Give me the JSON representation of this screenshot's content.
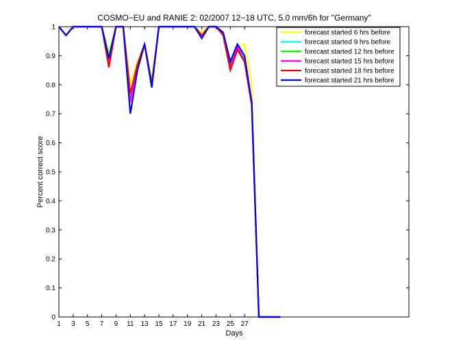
{
  "chart_data": {
    "type": "line",
    "title": "COSMO−EU and RANIE 2: 02/2007 12−18 UTC, 5.0 mm/6h for \"Germany\"",
    "xlabel": "Days",
    "ylabel": "Percent correct score",
    "xlim": [
      1,
      50
    ],
    "ylim": [
      0,
      1
    ],
    "x_ticks": [
      1,
      3,
      5,
      7,
      9,
      11,
      13,
      15,
      17,
      19,
      21,
      23,
      25,
      27
    ],
    "y_ticks": [
      0,
      0.1,
      0.2,
      0.3,
      0.4,
      0.5,
      0.6,
      0.7,
      0.8,
      0.9,
      1
    ],
    "y_tick_labels": [
      "0",
      "0.1",
      "0.2",
      "0.3",
      "0.4",
      "0.5",
      "0.6",
      "0.7",
      "0.8",
      "0.9",
      "1"
    ],
    "grid": false,
    "legend_position": "top-right",
    "x": [
      1,
      2,
      3,
      4,
      5,
      6,
      7,
      8,
      9,
      10,
      11,
      12,
      13,
      14,
      15,
      16,
      17,
      18,
      19,
      20,
      21,
      22,
      23,
      24,
      25,
      26,
      27,
      28,
      29,
      30,
      31,
      32
    ],
    "series": [
      {
        "name": "forecast started 6 hrs before",
        "color": "#ffff00",
        "values": [
          1,
          0.97,
          1,
          1,
          1,
          1,
          1,
          0.91,
          1,
          1,
          0.8,
          0.88,
          0.94,
          0.82,
          1,
          1,
          1,
          1,
          1,
          1,
          0.98,
          1,
          1,
          0.98,
          0.88,
          0.93,
          0.94,
          0.8,
          0,
          0,
          0,
          0
        ]
      },
      {
        "name": "forecast started 9 hrs before",
        "color": "#00ffff",
        "values": [
          1,
          0.97,
          1,
          1,
          1,
          1,
          1,
          0.9,
          1,
          1,
          0.75,
          0.86,
          0.94,
          0.8,
          1,
          1,
          1,
          1,
          1,
          1,
          0.97,
          1,
          1,
          0.98,
          0.87,
          0.93,
          0.89,
          0.74,
          0,
          0,
          0,
          0
        ]
      },
      {
        "name": "forecast started 12 hrs before",
        "color": "#00ff00",
        "values": [
          1,
          0.97,
          1,
          1,
          1,
          1,
          1,
          0.9,
          1,
          1,
          0.76,
          0.87,
          0.94,
          0.81,
          1,
          1,
          1,
          1,
          1,
          1,
          0.97,
          1,
          1,
          0.98,
          0.87,
          0.93,
          0.88,
          0.74,
          0,
          0,
          0,
          0
        ]
      },
      {
        "name": "forecast started 15 hrs before",
        "color": "#ff00ff",
        "values": [
          1,
          0.97,
          1,
          1,
          1,
          1,
          1,
          0.88,
          1,
          1,
          0.74,
          0.86,
          0.94,
          0.8,
          1,
          1,
          1,
          1,
          1,
          1,
          0.97,
          1,
          1,
          0.98,
          0.86,
          0.93,
          0.88,
          0.73,
          0,
          0,
          0,
          0
        ]
      },
      {
        "name": "forecast started 18 hrs before",
        "color": "#ff0000",
        "values": [
          1,
          0.97,
          1,
          1,
          1,
          1,
          1,
          0.86,
          1,
          1,
          0.77,
          0.87,
          0.94,
          0.8,
          1,
          1,
          1,
          1,
          1,
          1,
          0.97,
          1,
          1,
          0.97,
          0.85,
          0.92,
          0.88,
          0.73,
          0,
          0,
          0,
          0
        ]
      },
      {
        "name": "forecast started 21 hrs before",
        "color": "#0000ff",
        "values": [
          1,
          0.97,
          1,
          1,
          1,
          1,
          1,
          0.89,
          1,
          1,
          0.7,
          0.85,
          0.94,
          0.79,
          1,
          1,
          1,
          1,
          1,
          1,
          0.96,
          1,
          1,
          0.98,
          0.88,
          0.94,
          0.9,
          0.74,
          0,
          0,
          0,
          0
        ]
      }
    ]
  }
}
